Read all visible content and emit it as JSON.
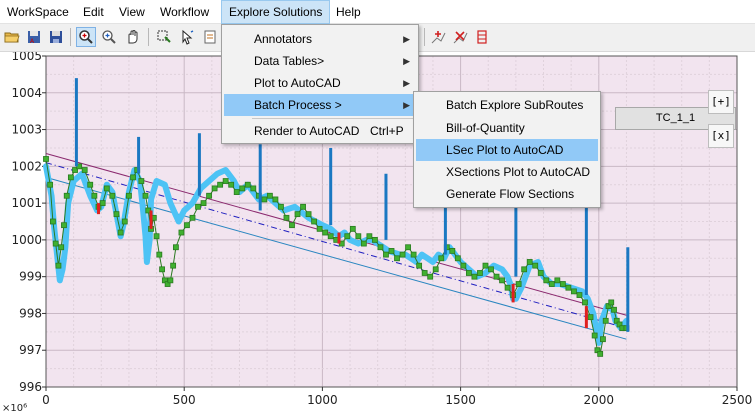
{
  "menubar": {
    "items": [
      "WorkSpace",
      "Edit",
      "View",
      "Workflow",
      "Explore Solutions",
      "Help"
    ],
    "active_index": 4
  },
  "toolbar": {
    "buttons": [
      "open-folder-icon",
      "save-as-icon",
      "save-icon",
      "zoom-in-icon",
      "zoom-out-icon",
      "pan-hand-icon",
      "select-icon",
      "pointer-icon",
      "document-icon",
      "add-point-icon",
      "remove-point-icon",
      "edit-point-icon"
    ]
  },
  "explore_menu": {
    "items": [
      {
        "label": "Annotators",
        "has_submenu": true
      },
      {
        "label": "Data Tables>",
        "has_submenu": true
      },
      {
        "label": "Plot to AutoCAD",
        "has_submenu": true
      },
      {
        "label": "Batch Process >",
        "has_submenu": true,
        "highlighted": true
      },
      {
        "label": "Render to AutoCAD",
        "shortcut": "Ctrl+P"
      }
    ]
  },
  "batch_submenu": {
    "items": [
      {
        "label": "Batch Explore SubRoutes"
      },
      {
        "label": "Bill-of-Quantity"
      },
      {
        "label": "LSec Plot to AutoCAD",
        "highlighted": true
      },
      {
        "label": "XSections Plot to AutoCAD"
      },
      {
        "label": "Generate Flow Sections"
      }
    ]
  },
  "plot": {
    "legend_label": "TC_1_1",
    "zoom_in_label": "[+]",
    "zoom_out_label": "[x]",
    "exponent_label": "×10⁶",
    "colors": {
      "background": "#f2e4ef",
      "ground": "#4dc3f5",
      "markers": "#40b030",
      "marker_edge": "#2a7a20",
      "piers": "#1a78c2",
      "drops": "#e02020",
      "top_line": "#8b2a6f",
      "bottom_line": "#2a86c0",
      "center_line": "#2020c0"
    }
  },
  "chart_data": {
    "type": "line",
    "xlim": [
      0,
      2500
    ],
    "ylim": [
      996,
      1005
    ],
    "x_ticks": [
      "0",
      "500",
      "1000",
      "1500",
      "2000",
      "2500"
    ],
    "y_ticks": [
      "996",
      "997",
      "998",
      "999",
      "1000",
      "1001",
      "1002",
      "1003",
      "1004",
      "1005"
    ],
    "grid": true,
    "ground_profile": [
      [
        0,
        1002.0
      ],
      [
        20,
        1001.2
      ],
      [
        30,
        1000.3
      ],
      [
        40,
        999.6
      ],
      [
        50,
        998.9
      ],
      [
        60,
        999.2
      ],
      [
        70,
        999.8
      ],
      [
        80,
        1001.0
      ],
      [
        100,
        1001.6
      ],
      [
        130,
        1001.8
      ],
      [
        160,
        1001.2
      ],
      [
        185,
        1000.8
      ],
      [
        200,
        1000.9
      ],
      [
        220,
        1001.5
      ],
      [
        240,
        1001.3
      ],
      [
        260,
        1000.5
      ],
      [
        270,
        1000.1
      ],
      [
        280,
        1000.4
      ],
      [
        300,
        1001.3
      ],
      [
        320,
        1001.9
      ],
      [
        340,
        1001.6
      ],
      [
        350,
        1000.9
      ],
      [
        360,
        1000.1
      ],
      [
        365,
        999.4
      ],
      [
        375,
        1000.0
      ],
      [
        380,
        1001.1
      ],
      [
        400,
        1001.6
      ],
      [
        430,
        1001.5
      ],
      [
        450,
        1001.0
      ],
      [
        480,
        1000.5
      ],
      [
        500,
        1000.8
      ],
      [
        530,
        1001.0
      ],
      [
        560,
        1001.4
      ],
      [
        590,
        1001.6
      ],
      [
        620,
        1001.8
      ],
      [
        650,
        1001.9
      ],
      [
        680,
        1001.6
      ],
      [
        700,
        1001.3
      ],
      [
        730,
        1001.5
      ],
      [
        750,
        1001.3
      ],
      [
        770,
        1001.1
      ],
      [
        800,
        1001.2
      ],
      [
        830,
        1001.0
      ],
      [
        860,
        1000.8
      ],
      [
        900,
        1000.9
      ],
      [
        950,
        1000.6
      ],
      [
        1000,
        1000.4
      ],
      [
        1030,
        1000.3
      ],
      [
        1060,
        1000.1
      ],
      [
        1080,
        1000.2
      ],
      [
        1100,
        1000.0
      ],
      [
        1130,
        999.9
      ],
      [
        1160,
        1000.0
      ],
      [
        1180,
        1000.0
      ],
      [
        1200,
        999.9
      ],
      [
        1240,
        999.7
      ],
      [
        1280,
        999.6
      ],
      [
        1300,
        999.6
      ],
      [
        1320,
        999.5
      ],
      [
        1340,
        999.4
      ],
      [
        1360,
        999.6
      ],
      [
        1380,
        999.5
      ],
      [
        1400,
        999.4
      ],
      [
        1420,
        999.6
      ],
      [
        1440,
        999.5
      ],
      [
        1460,
        999.8
      ],
      [
        1480,
        999.6
      ],
      [
        1500,
        999.4
      ],
      [
        1530,
        999.2
      ],
      [
        1560,
        999.0
      ],
      [
        1590,
        999.1
      ],
      [
        1620,
        999.3
      ],
      [
        1650,
        999.2
      ],
      [
        1670,
        999.0
      ],
      [
        1680,
        998.8
      ],
      [
        1690,
        998.4
      ],
      [
        1700,
        998.4
      ],
      [
        1720,
        998.7
      ],
      [
        1750,
        999.3
      ],
      [
        1780,
        999.4
      ],
      [
        1800,
        999.0
      ],
      [
        1830,
        998.8
      ],
      [
        1860,
        998.8
      ],
      [
        1900,
        998.7
      ],
      [
        1940,
        998.6
      ],
      [
        1960,
        998.4
      ],
      [
        1980,
        998.0
      ],
      [
        1990,
        997.6
      ],
      [
        2000,
        997.2
      ],
      [
        2010,
        997.8
      ],
      [
        2030,
        998.2
      ],
      [
        2050,
        998.1
      ],
      [
        2060,
        997.8
      ],
      [
        2080,
        997.6
      ],
      [
        2100,
        997.8
      ]
    ],
    "marker_profile": [
      [
        0,
        1002.2
      ],
      [
        15,
        1001.5
      ],
      [
        25,
        1000.5
      ],
      [
        35,
        999.9
      ],
      [
        45,
        999.3
      ],
      [
        55,
        999.8
      ],
      [
        65,
        1000.4
      ],
      [
        75,
        1001.2
      ],
      [
        90,
        1001.7
      ],
      [
        105,
        1001.9
      ],
      [
        120,
        1002.0
      ],
      [
        140,
        1001.9
      ],
      [
        160,
        1001.5
      ],
      [
        175,
        1001.2
      ],
      [
        190,
        1000.9
      ],
      [
        205,
        1001.0
      ],
      [
        220,
        1001.4
      ],
      [
        240,
        1001.2
      ],
      [
        255,
        1000.7
      ],
      [
        270,
        1000.2
      ],
      [
        285,
        1000.5
      ],
      [
        300,
        1001.2
      ],
      [
        315,
        1001.7
      ],
      [
        330,
        1001.9
      ],
      [
        345,
        1001.6
      ],
      [
        360,
        1001.2
      ],
      [
        370,
        1000.8
      ],
      [
        380,
        1000.3
      ],
      [
        390,
        1000.6
      ],
      [
        400,
        1000.1
      ],
      [
        410,
        999.6
      ],
      [
        420,
        999.2
      ],
      [
        430,
        998.9
      ],
      [
        440,
        998.8
      ],
      [
        450,
        998.9
      ],
      [
        460,
        999.3
      ],
      [
        470,
        999.8
      ],
      [
        490,
        1000.2
      ],
      [
        510,
        1000.4
      ],
      [
        530,
        1000.6
      ],
      [
        550,
        1000.9
      ],
      [
        570,
        1001.0
      ],
      [
        590,
        1001.2
      ],
      [
        610,
        1001.4
      ],
      [
        630,
        1001.5
      ],
      [
        650,
        1001.6
      ],
      [
        670,
        1001.5
      ],
      [
        690,
        1001.3
      ],
      [
        710,
        1001.4
      ],
      [
        730,
        1001.5
      ],
      [
        750,
        1001.4
      ],
      [
        770,
        1001.2
      ],
      [
        790,
        1001.1
      ],
      [
        810,
        1001.2
      ],
      [
        830,
        1001.1
      ],
      [
        850,
        1000.9
      ],
      [
        870,
        1000.6
      ],
      [
        890,
        1000.4
      ],
      [
        910,
        1000.7
      ],
      [
        930,
        1000.9
      ],
      [
        950,
        1000.7
      ],
      [
        970,
        1000.5
      ],
      [
        990,
        1000.3
      ],
      [
        1010,
        1000.2
      ],
      [
        1030,
        1000.1
      ],
      [
        1050,
        1000.0
      ],
      [
        1070,
        999.9
      ],
      [
        1090,
        1000.1
      ],
      [
        1110,
        1000.3
      ],
      [
        1130,
        1000.1
      ],
      [
        1150,
        999.9
      ],
      [
        1170,
        1000.1
      ],
      [
        1190,
        1000.0
      ],
      [
        1210,
        999.8
      ],
      [
        1230,
        999.6
      ],
      [
        1250,
        999.7
      ],
      [
        1270,
        999.5
      ],
      [
        1290,
        999.6
      ],
      [
        1310,
        999.8
      ],
      [
        1330,
        999.6
      ],
      [
        1350,
        999.3
      ],
      [
        1370,
        999.1
      ],
      [
        1390,
        999.0
      ],
      [
        1410,
        999.2
      ],
      [
        1430,
        999.5
      ],
      [
        1450,
        999.8
      ],
      [
        1470,
        999.7
      ],
      [
        1490,
        999.5
      ],
      [
        1510,
        999.3
      ],
      [
        1530,
        999.1
      ],
      [
        1550,
        999.0
      ],
      [
        1570,
        999.1
      ],
      [
        1590,
        999.3
      ],
      [
        1610,
        999.2
      ],
      [
        1630,
        999.0
      ],
      [
        1650,
        998.9
      ],
      [
        1670,
        998.7
      ],
      [
        1690,
        998.5
      ],
      [
        1710,
        998.8
      ],
      [
        1730,
        999.2
      ],
      [
        1750,
        999.4
      ],
      [
        1770,
        999.3
      ],
      [
        1790,
        999.1
      ],
      [
        1810,
        998.9
      ],
      [
        1830,
        998.8
      ],
      [
        1850,
        998.9
      ],
      [
        1870,
        998.8
      ],
      [
        1890,
        998.7
      ],
      [
        1910,
        998.6
      ],
      [
        1930,
        998.5
      ],
      [
        1950,
        998.3
      ],
      [
        1970,
        997.9
      ],
      [
        1985,
        997.4
      ],
      [
        1995,
        997.0
      ],
      [
        2005,
        996.9
      ],
      [
        2015,
        997.3
      ],
      [
        2025,
        997.8
      ],
      [
        2035,
        998.2
      ],
      [
        2045,
        998.3
      ],
      [
        2055,
        998.1
      ],
      [
        2065,
        997.8
      ],
      [
        2075,
        997.7
      ],
      [
        2085,
        997.6
      ],
      [
        2100,
        997.6
      ]
    ],
    "piers": [
      [
        110,
        1002.0,
        1004.4
      ],
      [
        335,
        1001.8,
        1002.8
      ],
      [
        555,
        1001.2,
        1002.9
      ],
      [
        775,
        1000.8,
        1002.6
      ],
      [
        1030,
        1000.4,
        1002.5
      ],
      [
        1230,
        1000.0,
        1001.8
      ],
      [
        1445,
        999.6,
        1002.1
      ],
      [
        1700,
        999.0,
        1002.3
      ],
      [
        1955,
        998.5,
        1001.7
      ],
      [
        2105,
        997.5,
        999.8
      ]
    ],
    "drops": [
      [
        190,
        1001.0,
        1000.7
      ],
      [
        380,
        1000.8,
        1000.3
      ],
      [
        1060,
        1000.2,
        999.9
      ],
      [
        1690,
        998.8,
        998.3
      ],
      [
        1955,
        998.2,
        997.6
      ]
    ],
    "top_line": [
      [
        0,
        1002.35
      ],
      [
        2100,
        997.95
      ]
    ],
    "bottom_line": [
      [
        0,
        1001.7
      ],
      [
        2100,
        997.3
      ]
    ],
    "center_line": [
      [
        0,
        1002.1
      ],
      [
        2100,
        997.6
      ]
    ]
  }
}
